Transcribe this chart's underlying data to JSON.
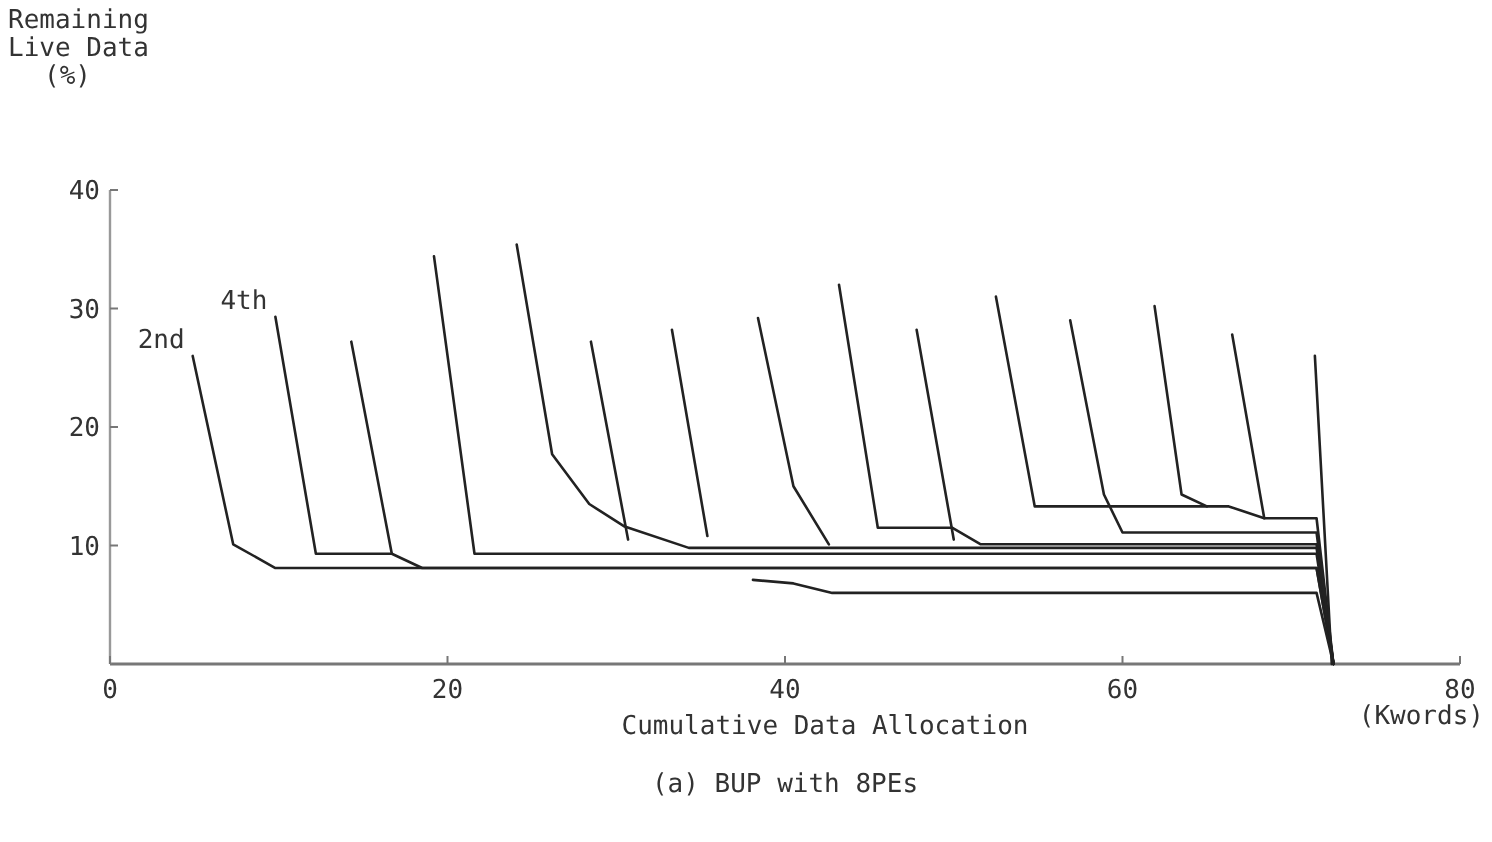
{
  "chart_data": {
    "type": "line",
    "title": "(a) BUP with 8PEs",
    "xlabel": "Cumulative Data Allocation",
    "ylabel": "Remaining\nLive Data\n(%)",
    "annotations": [
      {
        "text": "2nd",
        "x": 4.9,
        "y": 26
      },
      {
        "text": "4th",
        "x": 9.8,
        "y": 29.3
      },
      "(Kwords)"
    ],
    "xlim": [
      0,
      80
    ],
    "ylim": [
      0,
      40
    ],
    "xticks": [
      0,
      20,
      40,
      60,
      80
    ],
    "yticks": [
      10,
      20,
      30,
      40
    ],
    "series": [
      {
        "color": "#222222",
        "x": [
          4.9,
          7.3,
          9.8,
          71.5,
          72.5
        ],
        "values": [
          26,
          10.1,
          8.1,
          8.1,
          0
        ]
      },
      {
        "color": "#222222",
        "x": [
          9.8,
          12.2,
          16.7,
          18.5,
          71.5,
          72.5
        ],
        "values": [
          29.3,
          9.3,
          9.3,
          8.1,
          8.1,
          0
        ]
      },
      {
        "color": "#222222",
        "x": [
          14.3,
          16.7
        ],
        "values": [
          27.2,
          9.3
        ]
      },
      {
        "color": "#222222",
        "x": [
          19.2,
          21.6,
          71.5,
          72.5
        ],
        "values": [
          34.4,
          9.3,
          9.3,
          0
        ]
      },
      {
        "color": "#222222",
        "x": [
          24.1,
          26.2,
          28.4,
          30.5,
          34.3,
          71.5,
          72.5
        ],
        "values": [
          35.4,
          17.7,
          13.5,
          11.6,
          9.8,
          9.8,
          0
        ]
      },
      {
        "color": "#222222",
        "x": [
          28.5,
          30.7
        ],
        "values": [
          27.2,
          10.5
        ]
      },
      {
        "color": "#222222",
        "x": [
          33.3,
          35.4
        ],
        "values": [
          28.2,
          10.8
        ]
      },
      {
        "color": "#222222",
        "x": [
          38.4,
          40.5,
          42.6
        ],
        "values": [
          29.2,
          15,
          10.1
        ]
      },
      {
        "color": "#222222",
        "x": [
          43.2,
          45.5,
          49.9,
          51.6,
          71.5,
          72.5
        ],
        "values": [
          32,
          11.5,
          11.5,
          10.1,
          10.1,
          0
        ]
      },
      {
        "color": "#222222",
        "x": [
          47.8,
          50
        ],
        "values": [
          28.2,
          10.5
        ]
      },
      {
        "color": "#222222",
        "x": [
          52.5,
          54.8,
          66.3,
          68.4,
          71.5,
          72.5
        ],
        "values": [
          31,
          13.3,
          13.3,
          12.3,
          12.3,
          0
        ]
      },
      {
        "color": "#222222",
        "x": [
          56.9,
          58.9,
          60,
          71.5,
          72.5
        ],
        "values": [
          29,
          14.3,
          11.1,
          11.1,
          0
        ]
      },
      {
        "color": "#222222",
        "x": [
          61.9,
          63.5,
          65
        ],
        "values": [
          30.2,
          14.3,
          13.3
        ]
      },
      {
        "color": "#222222",
        "x": [
          66.5,
          68.4
        ],
        "values": [
          27.8,
          12.3
        ]
      },
      {
        "color": "#222222",
        "x": [
          71.4,
          72.4
        ],
        "values": [
          26,
          0
        ]
      },
      {
        "color": "#222222",
        "x": [
          38.1,
          40.5,
          42.8,
          71.5,
          72.5
        ],
        "values": [
          7.1,
          6.8,
          6,
          6,
          0
        ]
      }
    ]
  }
}
